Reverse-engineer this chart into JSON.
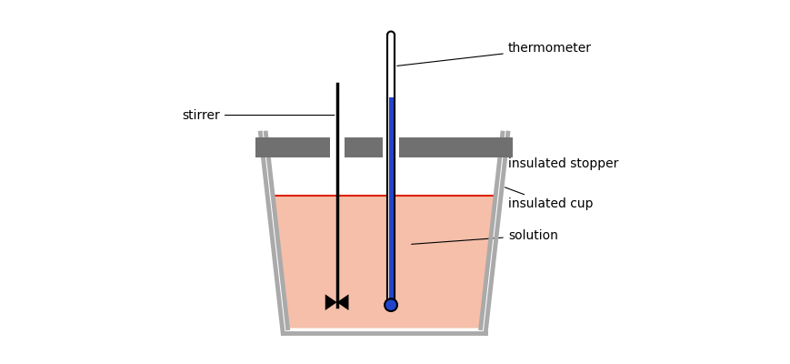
{
  "fig_width": 8.7,
  "fig_height": 4.0,
  "dpi": 100,
  "bg_color": "#ffffff",
  "cup_wall_color": "#aaaaaa",
  "solution_color": "#f5bfaa",
  "solution_line_color": "#dd2200",
  "stopper_color": "#707070",
  "thermo_fill_color": "#2244cc",
  "thermo_outline_color": "#000000",
  "stirrer_color": "#000000",
  "label_fontsize": 10,
  "label_color": "#000000",
  "labels": {
    "thermometer": "thermometer",
    "stirrer": "stirrer",
    "insulated_stopper": "insulated stopper",
    "insulated_cup": "insulated cup",
    "solution": "solution"
  }
}
